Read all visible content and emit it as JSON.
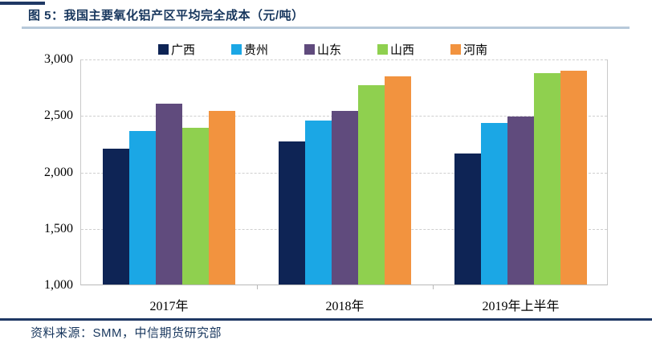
{
  "header": {
    "title": "图 5：我国主要氧化铝产区平均完全成本（元/吨）"
  },
  "source": {
    "label": "资料来源：SMM，中信期货研究部"
  },
  "colors": {
    "accent_navy": "#1f3864",
    "title_text": "#17365d",
    "title_underline": "#b7c9da",
    "gridline": "#cfcfcf",
    "axis": "#b9b9b9"
  },
  "chart_data": {
    "type": "bar",
    "title": "我国主要氧化铝产区平均完全成本（元/吨）",
    "xlabel": "",
    "ylabel": "",
    "categories": [
      "2017年",
      "2018年",
      "2019年上半年"
    ],
    "series": [
      {
        "name": "广西",
        "color": "#0e2455",
        "values": [
          2200,
          2270,
          2160
        ]
      },
      {
        "name": "贵州",
        "color": "#1ba7e5",
        "values": [
          2360,
          2455,
          2430
        ]
      },
      {
        "name": "山东",
        "color": "#604b7d",
        "values": [
          2600,
          2535,
          2485
        ]
      },
      {
        "name": "山西",
        "color": "#8fd04f",
        "values": [
          2390,
          2765,
          2875
        ]
      },
      {
        "name": "河南",
        "color": "#f2933f",
        "values": [
          2540,
          2845,
          2890
        ]
      }
    ],
    "ylim": [
      1000,
      3000
    ],
    "yticks": [
      1000,
      1500,
      2000,
      2500,
      3000
    ],
    "ytick_labels": [
      "1,000",
      "1,500",
      "2,000",
      "2,500",
      "3,000"
    ],
    "grid": "horizontal-dashed",
    "legend_position": "top"
  }
}
